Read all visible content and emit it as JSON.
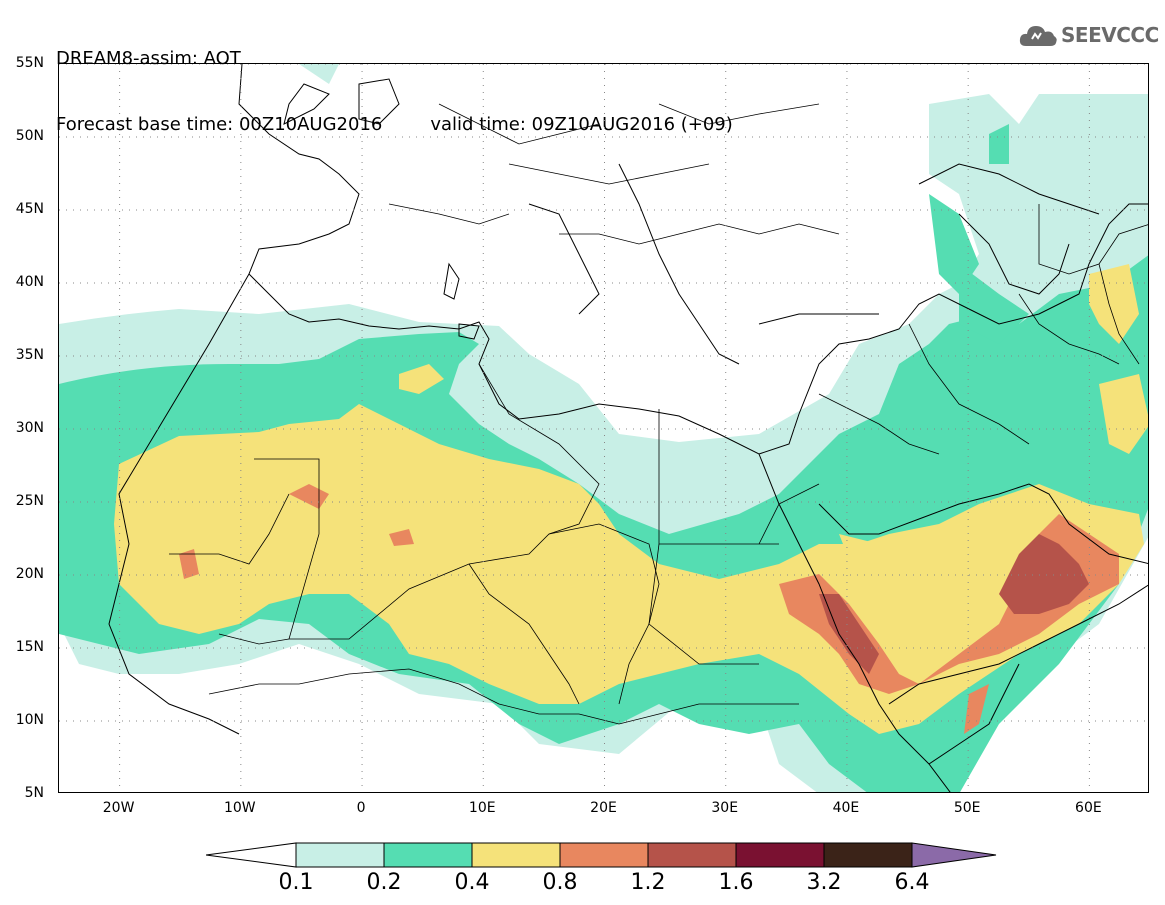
{
  "title": {
    "line1": "DREAM8-assim: AOT",
    "line2_base": "Forecast base time: 00Z10AUG2016",
    "line2_valid": "valid time: 09Z10AUG2016 (+09)"
  },
  "logo": {
    "text": "SEEVCCC",
    "icon": "cloud-icon"
  },
  "map": {
    "projection": "lat-lon",
    "lon_range": [
      -25,
      65
    ],
    "lat_range": [
      5,
      55
    ],
    "lat_labels": [
      "55N",
      "50N",
      "45N",
      "40N",
      "35N",
      "30N",
      "25N",
      "20N",
      "15N",
      "10N",
      "5N"
    ],
    "lon_labels": [
      "20W",
      "10W",
      "0",
      "10E",
      "20E",
      "30E",
      "40E",
      "50E",
      "60E"
    ],
    "grid": "dotted"
  },
  "colorbar": {
    "labels": [
      "0.1",
      "0.2",
      "0.4",
      "0.8",
      "1.2",
      "1.6",
      "3.2",
      "6.4"
    ],
    "colors": [
      "#ffffff",
      "#c8efe6",
      "#55ddb2",
      "#f5e27a",
      "#e8875f",
      "#b5534a",
      "#7a1131",
      "#3b2318",
      "#8b6aa8"
    ]
  },
  "chart_data": {
    "type": "heatmap",
    "title": "DREAM8-assim: AOT",
    "xlabel": "",
    "ylabel": "",
    "x_ticks": [
      -20,
      -10,
      0,
      10,
      20,
      30,
      40,
      50,
      60
    ],
    "y_ticks": [
      55,
      50,
      45,
      40,
      35,
      30,
      25,
      20,
      15,
      10,
      5
    ],
    "xlim": [
      -25,
      65
    ],
    "ylim": [
      5,
      55
    ],
    "levels": [
      0.1,
      0.2,
      0.4,
      0.8,
      1.2,
      1.6,
      3.2,
      6.4
    ]
  }
}
